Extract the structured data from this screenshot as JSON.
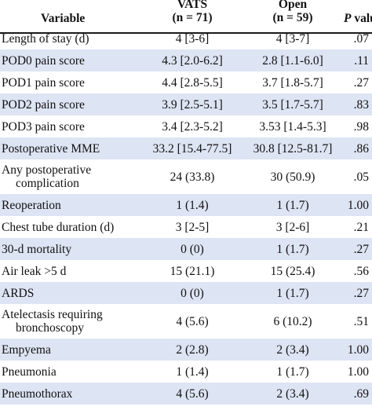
{
  "header": {
    "variable": "Variable",
    "vats_name": "VATS",
    "vats_n": "(n = 71)",
    "open_name": "Open",
    "open_n": "(n = 59)",
    "p_label_italic": "P",
    "p_label_rest": " value"
  },
  "rows": [
    {
      "variable": "Length of stay (d)",
      "vats": "4 [3-6]",
      "open": "4 [3-7]",
      "p": ".07"
    },
    {
      "variable": "POD0 pain score",
      "vats": "4.3 [2.0-6.2]",
      "open": "2.8 [1.1-6.0]",
      "p": ".11"
    },
    {
      "variable": "POD1 pain score",
      "vats": "4.4 [2.8-5.5]",
      "open": "3.7 [1.8-5.7]",
      "p": ".27"
    },
    {
      "variable": "POD2 pain score",
      "vats": "3.9 [2.5-5.1]",
      "open": "3.5 [1.7-5.7]",
      "p": ".83"
    },
    {
      "variable": "POD3 pain score",
      "vats": "3.4 [2.3-5.2]",
      "open": "3.53 [1.4-5.3]",
      "p": ".98"
    },
    {
      "variable": "Postoperative MME",
      "vats": "33.2 [15.4-77.5]",
      "open": "30.8 [12.5-81.7]",
      "p": ".86"
    },
    {
      "variable": "Any postoperative",
      "variable2": "complication",
      "vats": "24 (33.8)",
      "open": "30 (50.9)",
      "p": ".05"
    },
    {
      "variable": "Reoperation",
      "vats": "1 (1.4)",
      "open": "1 (1.7)",
      "p": "1.00"
    },
    {
      "variable": "Chest tube duration (d)",
      "vats": "3 [2-5]",
      "open": "3 [2-6]",
      "p": ".21"
    },
    {
      "variable": "30-d mortality",
      "vats": "0 (0)",
      "open": "1 (1.7)",
      "p": ".27"
    },
    {
      "variable": "Air leak >5 d",
      "vats": "15 (21.1)",
      "open": "15 (25.4)",
      "p": ".56"
    },
    {
      "variable": "ARDS",
      "vats": "0 (0)",
      "open": "1 (1.7)",
      "p": ".27"
    },
    {
      "variable": "Atelectasis requiring",
      "variable2": "bronchoscopy",
      "vats": "4 (5.6)",
      "open": "6 (10.2)",
      "p": ".51"
    },
    {
      "variable": "Empyema",
      "vats": "2 (2.8)",
      "open": "2 (3.4)",
      "p": "1.00"
    },
    {
      "variable": "Pneumonia",
      "vats": "1 (1.4)",
      "open": "1 (1.7)",
      "p": "1.00"
    },
    {
      "variable": "Pneumothorax",
      "vats": "4 (5.6)",
      "open": "2 (3.4)",
      "p": ".69"
    }
  ]
}
